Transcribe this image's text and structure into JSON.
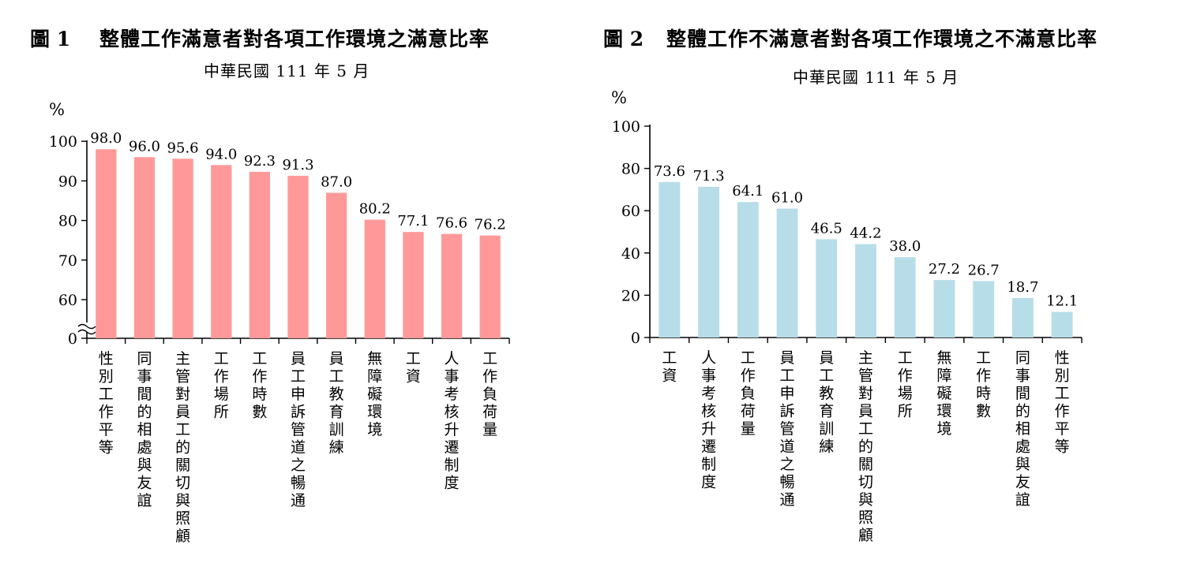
{
  "chart_data": [
    {
      "type": "bar",
      "figure_number": "圖 1",
      "title": "整體工作滿意者對各項工作環境之滿意比率",
      "subtitle": "中華民國 111 年 5 月",
      "ylabel": "%",
      "ylim": [
        55,
        100
      ],
      "axis_break": true,
      "yticks": [
        "0",
        "60",
        "70",
        "80",
        "90",
        "100"
      ],
      "grid": false,
      "color": "#ff9999",
      "categories": [
        "性別工作平等",
        "同事間的相處與友誼",
        "主管對員工的關切與照顧",
        "工作場所",
        "工作時數",
        "員工申訴管道之暢通",
        "員工教育訓練",
        "無障礙環境",
        "工資",
        "人事考核升遷制度",
        "工作負荷量"
      ],
      "values": [
        98.0,
        96.0,
        95.6,
        94.0,
        92.3,
        91.3,
        87.0,
        80.2,
        77.1,
        76.6,
        76.2
      ],
      "value_labels": [
        "98.0",
        "96.0",
        "95.6",
        "94.0",
        "92.3",
        "91.3",
        "87.0",
        "80.2",
        "77.1",
        "76.6",
        "76.2"
      ]
    },
    {
      "type": "bar",
      "figure_number": "圖 2",
      "title": "整體工作不滿意者對各項工作環境之不滿意比率",
      "subtitle": "中華民國 111 年 5 月",
      "ylabel": "%",
      "ylim": [
        0,
        100
      ],
      "axis_break": false,
      "yticks": [
        "0",
        "20",
        "40",
        "60",
        "80",
        "100"
      ],
      "grid": false,
      "color": "#b7dde8",
      "categories": [
        "工資",
        "人事考核升遷制度",
        "工作負荷量",
        "員工申訴管道之暢通",
        "員工教育訓練",
        "主管對員工的關切與照顧",
        "工作場所",
        "無障礙環境",
        "工作時數",
        "同事間的相處與友誼",
        "性別工作平等"
      ],
      "values": [
        73.6,
        71.3,
        64.1,
        61.0,
        46.5,
        44.2,
        38.0,
        27.2,
        26.7,
        18.7,
        12.1
      ],
      "value_labels": [
        "73.6",
        "71.3",
        "64.1",
        "61.0",
        "46.5",
        "44.2",
        "38.0",
        "27.2",
        "26.7",
        "18.7",
        "12.1"
      ]
    }
  ]
}
